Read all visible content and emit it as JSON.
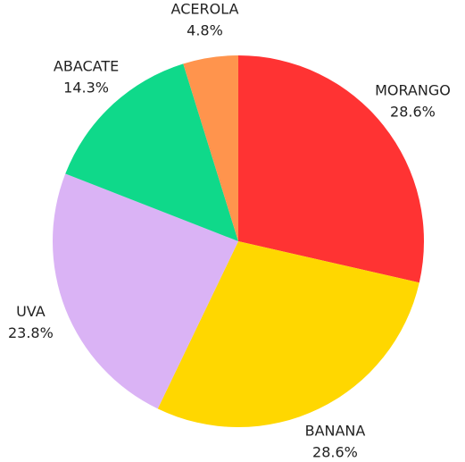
{
  "chart_data": {
    "type": "pie",
    "categories": [
      "MORANGO",
      "BANANA",
      "UVA",
      "ABACATE",
      "ACEROLA"
    ],
    "values": [
      28.6,
      28.6,
      23.8,
      14.3,
      4.8
    ],
    "value_labels": [
      "28.6%",
      "28.6%",
      "23.8%",
      "14.3%",
      "4.8%"
    ],
    "colors": [
      "#ff3333",
      "#ffd700",
      "#dab3f5",
      "#0fd98a",
      "#ff944d"
    ]
  }
}
